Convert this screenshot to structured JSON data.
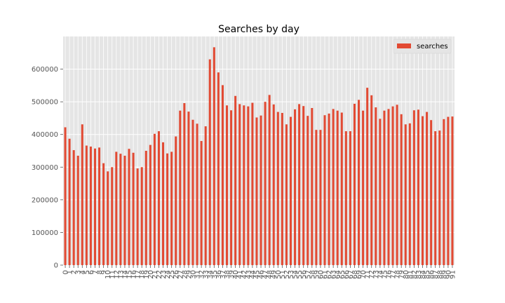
{
  "chart_data": {
    "type": "bar",
    "title": "Searches by day",
    "xlabel": "",
    "ylabel": "",
    "ylim": [
      0,
      700000
    ],
    "yticks": [
      0,
      100000,
      200000,
      300000,
      400000,
      500000,
      600000
    ],
    "grid": true,
    "legend_position": "top-right",
    "background_color": "#e5e5e5",
    "bar_color": "#e24a33",
    "categories": [
      "0",
      "1",
      "2",
      "3",
      "4",
      "5",
      "6",
      "7",
      "8",
      "9",
      "10",
      "11",
      "12",
      "13",
      "14",
      "15",
      "16",
      "17",
      "18",
      "19",
      "20",
      "21",
      "22",
      "23",
      "24",
      "25",
      "26",
      "27",
      "28",
      "29",
      "30",
      "31",
      "32",
      "33",
      "34",
      "35",
      "36",
      "37",
      "38",
      "39",
      "40",
      "41",
      "42",
      "43",
      "44",
      "45",
      "46",
      "47",
      "48",
      "49",
      "50",
      "51",
      "52",
      "53",
      "54",
      "55",
      "56",
      "57",
      "58",
      "59",
      "60",
      "61",
      "62",
      "63",
      "64",
      "65",
      "66",
      "67",
      "68",
      "69",
      "70",
      "71",
      "72",
      "73",
      "74",
      "75",
      "76",
      "77",
      "78",
      "79",
      "80",
      "81",
      "82",
      "83",
      "84",
      "85",
      "86",
      "87",
      "88",
      "89",
      "90",
      "91"
    ],
    "series": [
      {
        "name": "searches",
        "values": [
          422000,
          387000,
          352000,
          335000,
          431000,
          366000,
          363000,
          357000,
          360000,
          312000,
          287000,
          300000,
          347000,
          341000,
          335000,
          356000,
          344000,
          296000,
          300000,
          350000,
          368000,
          402000,
          410000,
          376000,
          342000,
          347000,
          394000,
          473000,
          496000,
          470000,
          445000,
          433000,
          380000,
          425000,
          630000,
          667000,
          590000,
          551000,
          489000,
          474000,
          518000,
          493000,
          489000,
          486000,
          497000,
          452000,
          458000,
          500000,
          521000,
          492000,
          469000,
          466000,
          431000,
          454000,
          477000,
          493000,
          487000,
          457000,
          481000,
          414000,
          414000,
          459000,
          464000,
          478000,
          473000,
          467000,
          410000,
          410000,
          494000,
          506000,
          473000,
          543000,
          520000,
          483000,
          448000,
          473000,
          478000,
          486000,
          491000,
          462000,
          431000,
          434000,
          474000,
          476000,
          456000,
          469000,
          444000,
          410000,
          412000,
          447000,
          454000,
          455000
        ]
      }
    ]
  }
}
